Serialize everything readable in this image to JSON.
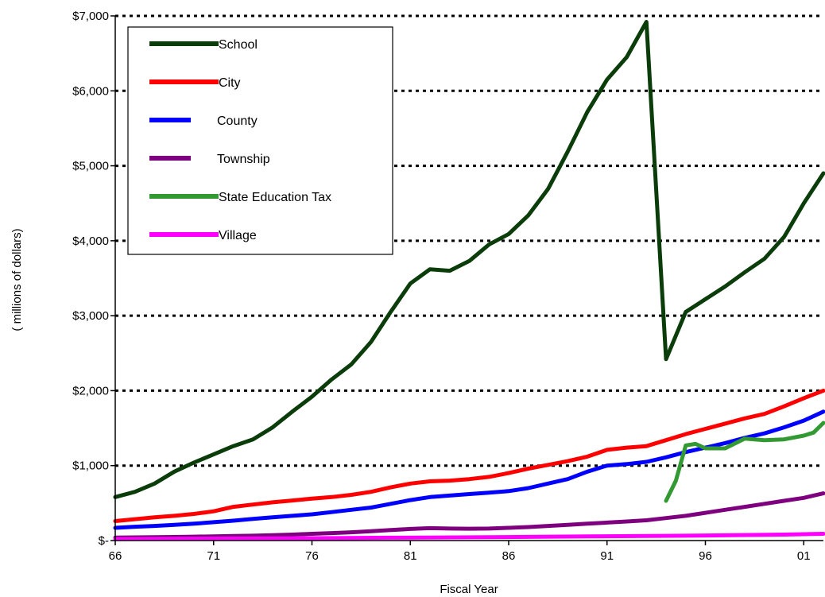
{
  "chart_data": {
    "type": "line",
    "title": "",
    "xlabel": "Fiscal Year",
    "ylabel": "( millions of dollars)",
    "xlim": [
      1966,
      2002
    ],
    "ylim": [
      0,
      7000
    ],
    "x_tick_values": [
      1966,
      1971,
      1976,
      1981,
      1986,
      1991,
      1996,
      2001
    ],
    "x_tick_labels": [
      "66",
      "71",
      "76",
      "81",
      "86",
      "91",
      "96",
      "01"
    ],
    "y_tick_values": [
      0,
      1000,
      2000,
      3000,
      4000,
      5000,
      6000,
      7000
    ],
    "y_tick_labels": [
      "$-",
      "$1,000",
      "$2,000",
      "$3,000",
      "$4,000",
      "$5,000",
      "$6,000",
      "$7,000"
    ],
    "grid": "horizontal dotted",
    "legend_position": "top-left",
    "series": [
      {
        "name": "School",
        "color": "#0b3d0b",
        "x": [
          1966,
          1967,
          1968,
          1969,
          1970,
          1971,
          1972,
          1973,
          1974,
          1975,
          1976,
          1977,
          1978,
          1979,
          1980,
          1981,
          1982,
          1983,
          1984,
          1985,
          1986,
          1987,
          1988,
          1989,
          1990,
          1991,
          1992,
          1993,
          1994,
          1995,
          1996,
          1997,
          1998,
          1999,
          2000,
          2001,
          2002
        ],
        "y": [
          580,
          650,
          760,
          920,
          1040,
          1150,
          1260,
          1350,
          1510,
          1720,
          1920,
          2150,
          2350,
          2650,
          3050,
          3430,
          3620,
          3600,
          3730,
          3950,
          4090,
          4340,
          4690,
          5190,
          5720,
          6150,
          6450,
          6920,
          2420,
          3050,
          3220,
          3390,
          3580,
          3760,
          4050,
          4500,
          4900
        ]
      },
      {
        "name": "City",
        "color": "#ff0000",
        "x": [
          1966,
          1967,
          1968,
          1969,
          1970,
          1971,
          1972,
          1973,
          1974,
          1975,
          1976,
          1977,
          1978,
          1979,
          1980,
          1981,
          1982,
          1983,
          1984,
          1985,
          1986,
          1987,
          1988,
          1989,
          1990,
          1991,
          1992,
          1993,
          1994,
          1995,
          1996,
          1997,
          1998,
          1999,
          2000,
          2001,
          2002
        ],
        "y": [
          260,
          285,
          310,
          330,
          355,
          390,
          450,
          480,
          510,
          535,
          560,
          580,
          610,
          650,
          710,
          760,
          790,
          800,
          820,
          850,
          900,
          960,
          1010,
          1060,
          1120,
          1210,
          1240,
          1260,
          1340,
          1420,
          1490,
          1560,
          1630,
          1690,
          1790,
          1900,
          2000
        ]
      },
      {
        "name": "County",
        "color": "#0000ff",
        "x": [
          1966,
          1967,
          1968,
          1969,
          1970,
          1971,
          1972,
          1973,
          1974,
          1975,
          1976,
          1977,
          1978,
          1979,
          1980,
          1981,
          1982,
          1983,
          1984,
          1985,
          1986,
          1987,
          1988,
          1989,
          1990,
          1991,
          1992,
          1993,
          1994,
          1995,
          1996,
          1997,
          1998,
          1999,
          2000,
          2001,
          2002
        ],
        "y": [
          170,
          185,
          195,
          210,
          225,
          245,
          265,
          290,
          310,
          330,
          350,
          380,
          410,
          440,
          490,
          540,
          580,
          600,
          620,
          640,
          660,
          700,
          760,
          820,
          920,
          1000,
          1020,
          1050,
          1110,
          1180,
          1240,
          1300,
          1370,
          1430,
          1510,
          1600,
          1720
        ]
      },
      {
        "name": "Township",
        "color": "#7f007f",
        "x": [
          1966,
          1967,
          1968,
          1969,
          1970,
          1971,
          1972,
          1973,
          1974,
          1975,
          1976,
          1977,
          1978,
          1979,
          1980,
          1981,
          1982,
          1983,
          1984,
          1985,
          1986,
          1987,
          1988,
          1989,
          1990,
          1991,
          1992,
          1993,
          1994,
          1995,
          1996,
          1997,
          1998,
          1999,
          2000,
          2001,
          2002
        ],
        "y": [
          40,
          42,
          45,
          48,
          52,
          56,
          60,
          65,
          72,
          80,
          90,
          100,
          110,
          125,
          140,
          155,
          165,
          160,
          158,
          160,
          170,
          180,
          195,
          210,
          225,
          240,
          255,
          270,
          300,
          330,
          370,
          410,
          450,
          490,
          530,
          570,
          630
        ]
      },
      {
        "name": "State Education Tax",
        "color": "#339933",
        "x": [
          1994,
          1994.5,
          1995,
          1995.5,
          1996,
          1997,
          1998,
          1999,
          2000,
          2001,
          2001.5,
          2002
        ],
        "y": [
          530,
          800,
          1270,
          1290,
          1230,
          1230,
          1360,
          1340,
          1350,
          1400,
          1440,
          1570
        ]
      },
      {
        "name": "Village",
        "color": "#ff00ff",
        "x": [
          1966,
          1970,
          1975,
          1980,
          1985,
          1990,
          1995,
          2000,
          2002
        ],
        "y": [
          20,
          25,
          30,
          38,
          45,
          55,
          65,
          80,
          90
        ]
      }
    ]
  }
}
